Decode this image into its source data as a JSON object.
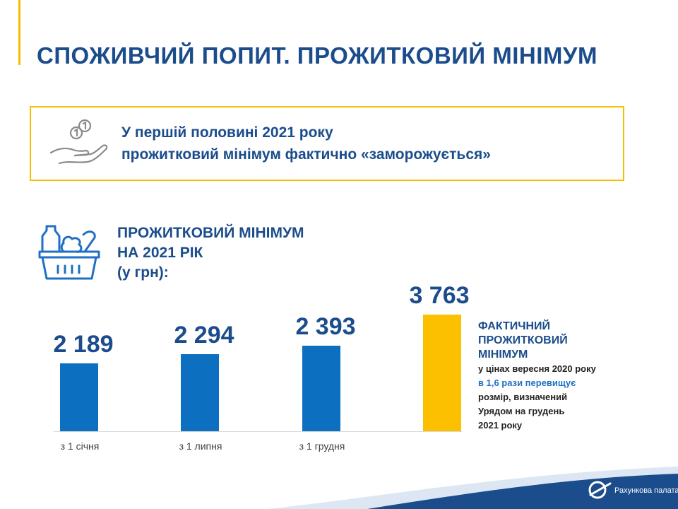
{
  "title": "СПОЖИВЧИЙ ПОПИТ. ПРОЖИТКОВИЙ МІНІМУМ",
  "notice": {
    "line1": "У першій половині 2021 року",
    "line2": "прожитковий мінімум фактично «заморожується»",
    "icon": "hand-coins-icon"
  },
  "section": {
    "icon": "grocery-basket-icon",
    "heading_line1": "ПРОЖИТКОВИЙ МІНІМУМ",
    "heading_line2": "НА 2021 РІК",
    "heading_line3": "(у грн):"
  },
  "chart_data": {
    "type": "bar",
    "categories": [
      "з 1 січня",
      "з 1 липня",
      "з 1 грудня",
      ""
    ],
    "values": [
      2189,
      2294,
      2393,
      3763
    ],
    "value_labels": [
      "2 189",
      "2 294",
      "2 393",
      "3 763"
    ],
    "colors": [
      "#0d6fbf",
      "#0d6fbf",
      "#0d6fbf",
      "#fcc000"
    ],
    "ylim": [
      0,
      3763
    ],
    "grid": false,
    "legend": "none"
  },
  "side_note": {
    "heading1": "ФАКТИЧНИЙ",
    "heading2": "ПРОЖИТКОВИЙ",
    "heading3": "МІНІМУМ",
    "line1": "у цінах вересня 2020 року",
    "line2": "в 1,6 рази перевищує",
    "line3": "розмір, визначений",
    "line4": "Урядом на грудень",
    "line5": "2021 року"
  },
  "footer": {
    "logo_text": "Рахункова палата",
    "logo_icon": "accounting-chamber-logo-icon"
  },
  "colors": {
    "primary": "#1b4c8c",
    "bar_blue": "#0d6fbf",
    "bar_yellow": "#fcc000",
    "accent": "#f6c000",
    "highlight": "#1f6fc6"
  }
}
